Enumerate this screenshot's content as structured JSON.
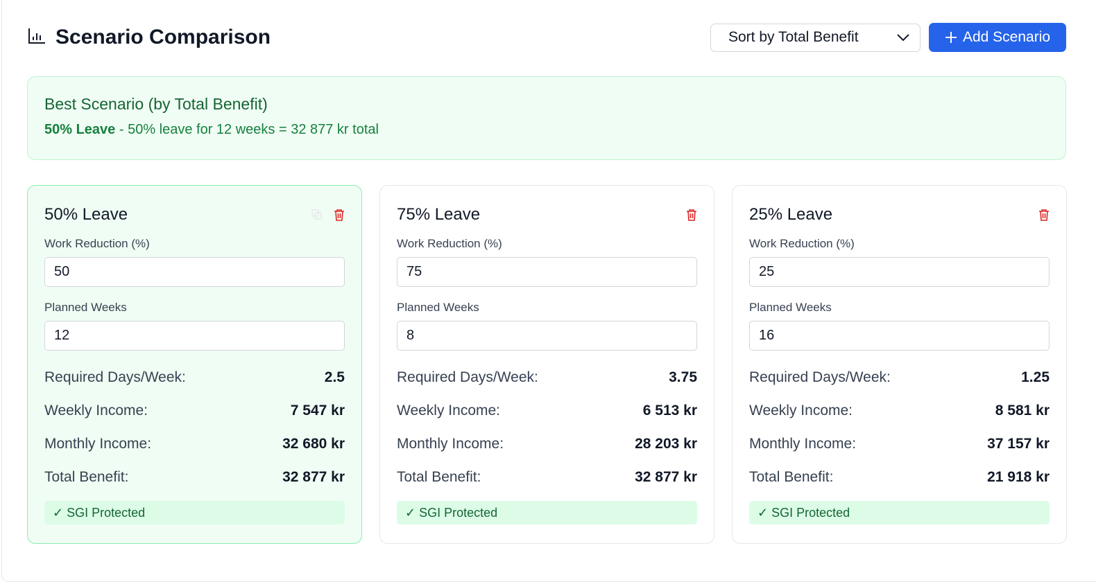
{
  "header": {
    "title": "Scenario Comparison",
    "icon": "bar-chart-icon",
    "sort_label": "Sort by Total Benefit",
    "add_label": "Add Scenario"
  },
  "best": {
    "heading": "Best Scenario (by Total Benefit)",
    "name": "50% Leave",
    "description": " - 50% leave for 12 weeks = 32 877 kr total"
  },
  "labels": {
    "work_reduction": "Work Reduction (%)",
    "planned_weeks": "Planned Weeks",
    "required_days": "Required Days/Week:",
    "weekly_income": "Weekly Income:",
    "monthly_income": "Monthly Income:",
    "total_benefit": "Total Benefit:",
    "sgi": "✓ SGI Protected"
  },
  "scenarios": [
    {
      "name": "50% Leave",
      "work_reduction": "50",
      "planned_weeks": "12",
      "required_days": "2.5",
      "weekly_income": "7 547 kr",
      "monthly_income": "32 680 kr",
      "total_benefit": "32 877 kr"
    },
    {
      "name": "75% Leave",
      "work_reduction": "75",
      "planned_weeks": "8",
      "required_days": "3.75",
      "weekly_income": "6 513 kr",
      "monthly_income": "28 203 kr",
      "total_benefit": "32 877 kr"
    },
    {
      "name": "25% Leave",
      "work_reduction": "25",
      "planned_weeks": "16",
      "required_days": "1.25",
      "weekly_income": "8 581 kr",
      "monthly_income": "37 157 kr",
      "total_benefit": "21 918 kr"
    }
  ],
  "colors": {
    "accent": "#2563eb",
    "success": "#15803d",
    "danger": "#dc2626"
  }
}
